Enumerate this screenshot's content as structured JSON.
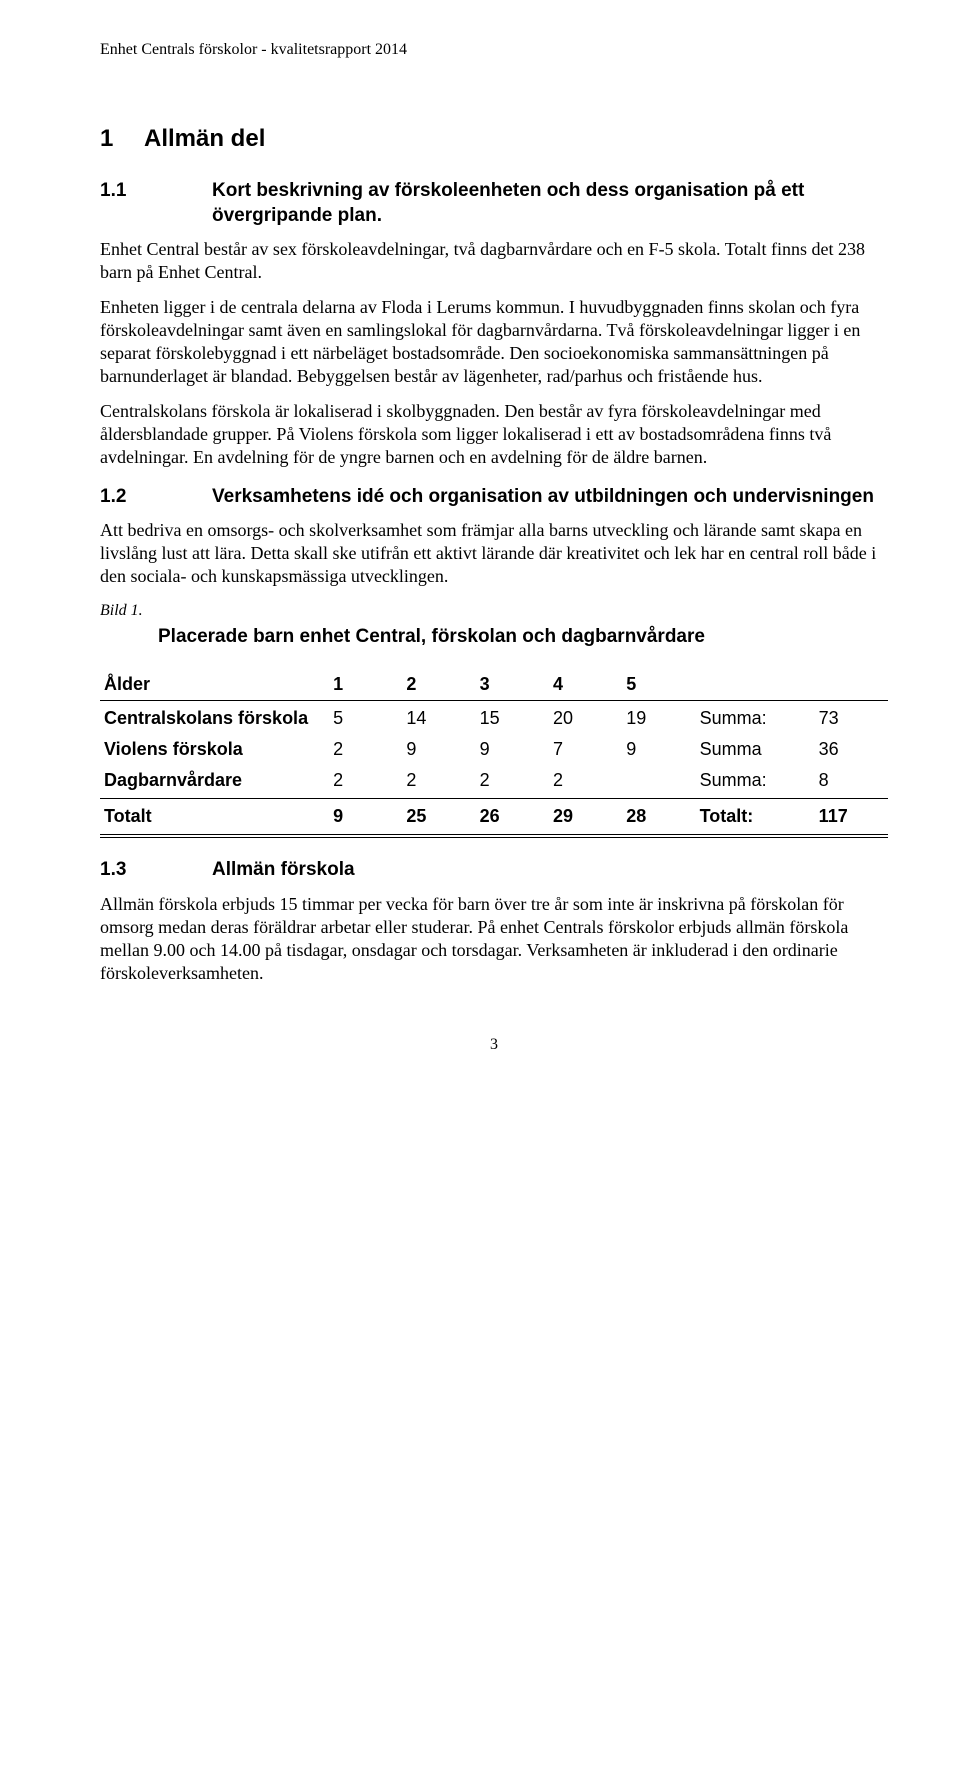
{
  "header": "Enhet Centrals förskolor - kvalitetsrapport 2014",
  "s1": {
    "num": "1",
    "title": "Allmän del",
    "s11": {
      "num": "1.1",
      "title": "Kort beskrivning av förskoleenheten och dess organisation på ett övergripande plan.",
      "p1": "Enhet Central består av sex förskoleavdelningar, två dagbarnvårdare och en F-5 skola. Totalt finns det 238 barn på Enhet Central.",
      "p2": "Enheten ligger i de centrala delarna av Floda i Lerums kommun. I huvudbyggnaden finns skolan och fyra förskoleavdelningar samt även en samlingslokal för dagbarnvårdarna. Två förskoleavdelningar ligger i en separat förskolebyggnad i ett närbeläget bostadsområde. Den socioekonomiska sammansättningen på barnunderlaget är blandad. Bebyggelsen består av lägenheter, rad/parhus och fristående hus.",
      "p3": "Centralskolans förskola är lokaliserad i skolbyggnaden. Den består av fyra förskoleavdelningar med åldersblandade grupper. På Violens förskola som ligger lokaliserad i ett av bostadsområdena finns två avdelningar. En avdelning för de yngre barnen och en avdelning för de äldre barnen."
    },
    "s12": {
      "num": "1.2",
      "title": "Verksamhetens idé och organisation av utbildningen och undervisningen",
      "p1": "Att bedriva en omsorgs- och skolverksamhet som främjar alla barns utveckling och lärande samt skapa en livslång lust att lära. Detta skall ske utifrån ett aktivt lärande där kreativitet och lek har en central roll både i den sociala- och kunskapsmässiga utvecklingen.",
      "caption": "Bild 1.",
      "chart_title": "Placerade barn enhet Central, förskolan och dagbarnvårdare"
    },
    "table": {
      "h_label": "Ålder",
      "ages": [
        "1",
        "2",
        "3",
        "4",
        "5"
      ],
      "rows": [
        {
          "label": "Centralskolans förskola",
          "v": [
            "5",
            "14",
            "15",
            "20",
            "19"
          ],
          "sum_lbl": "Summa:",
          "sum": "73"
        },
        {
          "label": "Violens förskola",
          "v": [
            "2",
            "9",
            "9",
            "7",
            "9"
          ],
          "sum_lbl": "Summa",
          "sum": "36"
        },
        {
          "label": "Dagbarnvårdare",
          "v": [
            "2",
            "2",
            "2",
            "2",
            ""
          ],
          "sum_lbl": "Summa:",
          "sum": "8"
        }
      ],
      "total": {
        "label": "Totalt",
        "v": [
          "9",
          "25",
          "26",
          "29",
          "28"
        ],
        "sum_lbl": "Totalt:",
        "sum": "117"
      }
    },
    "s13": {
      "num": "1.3",
      "title": "Allmän förskola",
      "p1": "Allmän förskola erbjuds 15 timmar per vecka för barn över tre år som inte är inskrivna på förskolan för omsorg medan deras föräldrar arbetar eller studerar. På enhet Centrals förskolor erbjuds allmän förskola mellan 9.00 och 14.00 på tisdagar, onsdagar och torsdagar. Verksamheten är inkluderad i den ordinarie förskoleverksamheten."
    }
  },
  "page_number": "3"
}
